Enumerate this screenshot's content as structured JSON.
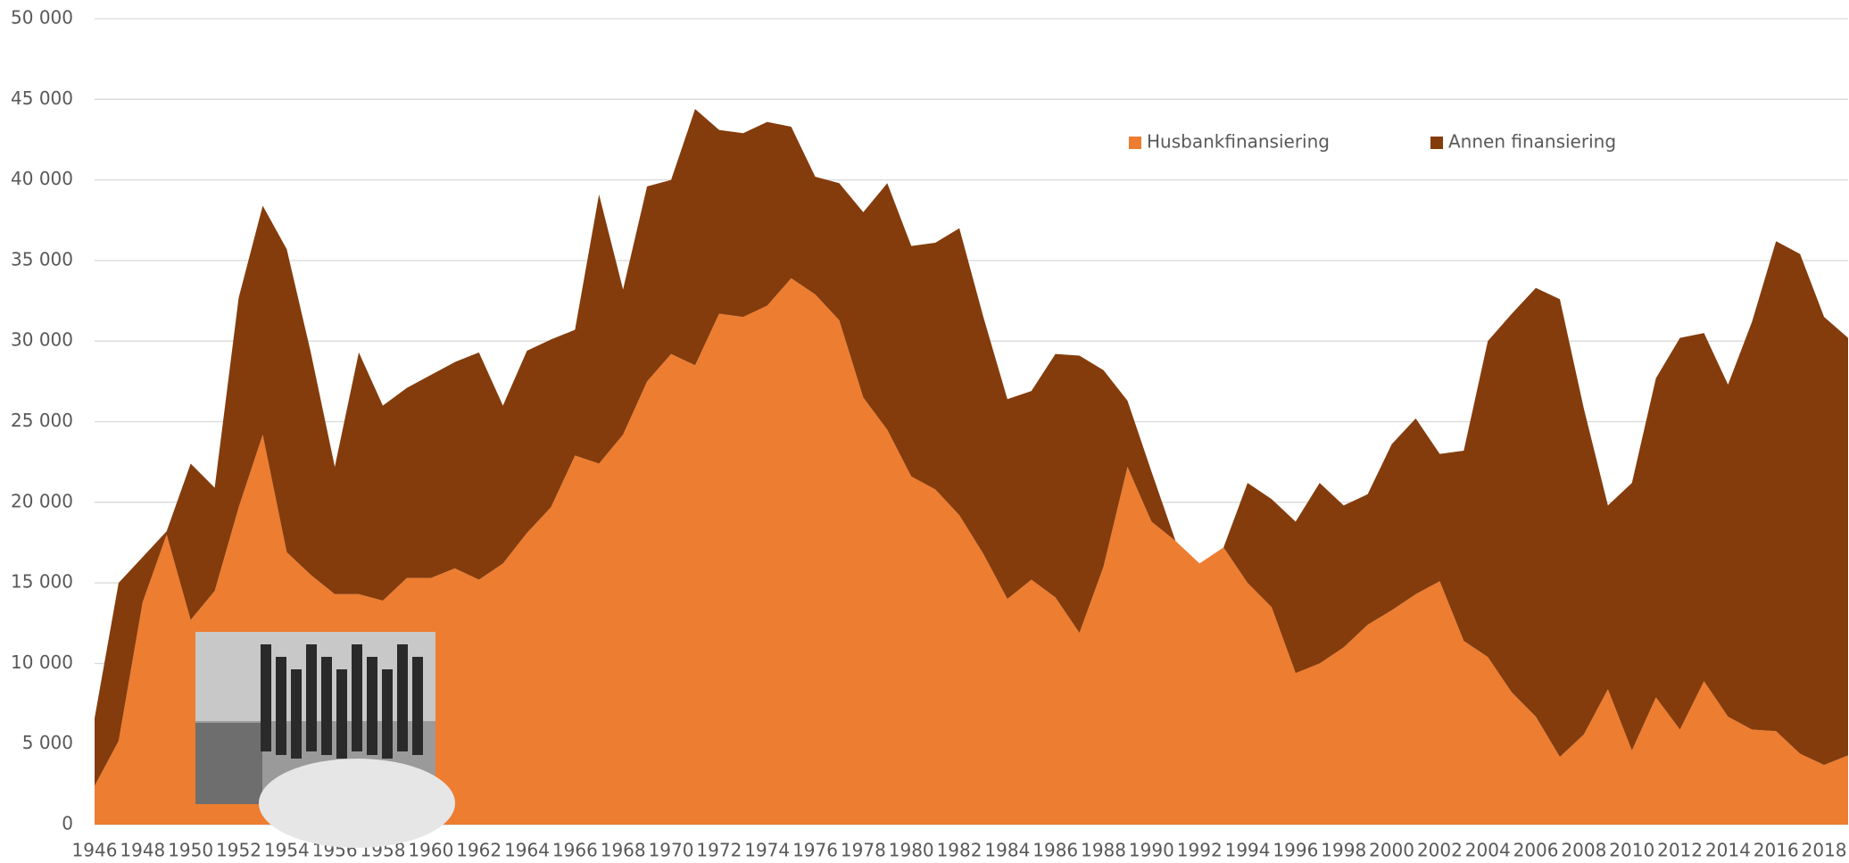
{
  "chart_data": {
    "type": "stacked-area",
    "x": [
      1946,
      1947,
      1948,
      1949,
      1950,
      1951,
      1952,
      1953,
      1954,
      1955,
      1956,
      1957,
      1958,
      1959,
      1960,
      1961,
      1962,
      1963,
      1964,
      1965,
      1966,
      1967,
      1968,
      1969,
      1970,
      1971,
      1972,
      1973,
      1974,
      1975,
      1976,
      1977,
      1978,
      1979,
      1980,
      1981,
      1982,
      1983,
      1984,
      1985,
      1986,
      1987,
      1988,
      1989,
      1990,
      1991,
      1992,
      1993,
      1994,
      1995,
      1996,
      1997,
      1998,
      1999,
      2000,
      2001,
      2002,
      2003,
      2004,
      2005,
      2006,
      2007,
      2008,
      2009,
      2010,
      2011,
      2012,
      2013,
      2014,
      2015,
      2016,
      2017,
      2018,
      2019
    ],
    "series": [
      {
        "name": "Husbankfinansiering",
        "color": "#ed7d31",
        "values": [
          2400,
          5200,
          13800,
          18000,
          12700,
          14500,
          19700,
          24200,
          16900,
          15500,
          14300,
          14300,
          13900,
          15300,
          15300,
          15900,
          15200,
          16200,
          18100,
          19700,
          22900,
          22400,
          24200,
          27500,
          29200,
          28500,
          31700,
          31500,
          32200,
          33900,
          32900,
          31300,
          26500,
          24500,
          21600,
          20800,
          19200,
          16800,
          14000,
          15200,
          14100,
          11900,
          16000,
          22200,
          18800,
          17600,
          16200,
          17200,
          15000,
          13500,
          9400,
          10000,
          11000,
          12400,
          13300,
          14300,
          15100,
          11400,
          10400,
          8200,
          6700,
          4200,
          5600,
          8400,
          4600,
          7900,
          5900,
          8900,
          6700,
          5900,
          5800,
          4400,
          3700,
          4300
        ]
      },
      {
        "name": "Annen finansiering",
        "color": "#843c0c",
        "values": [
          4200,
          9800,
          2800,
          200,
          9700,
          6400,
          13000,
          14200,
          18800,
          13800,
          7900,
          15000,
          12100,
          11800,
          12600,
          12800,
          14100,
          9800,
          11300,
          10400,
          7800,
          16700,
          9000,
          12100,
          10800,
          15900,
          11400,
          11400,
          11400,
          9400,
          7300,
          8500,
          11500,
          15300,
          14300,
          15300,
          17800,
          14700,
          12400,
          11700,
          15100,
          17200,
          12200,
          4100,
          3100,
          0,
          0,
          0,
          6200,
          6700,
          9400,
          11200,
          8800,
          8100,
          10300,
          10900,
          7900,
          11800,
          19600,
          23500,
          26600,
          28400,
          20200,
          11400,
          16600,
          19800,
          24300,
          21600,
          20600,
          25300,
          30400,
          31000,
          27800,
          25900
        ]
      }
    ],
    "xlim": [
      1946,
      2019
    ],
    "xticks": [
      1946,
      1948,
      1950,
      1952,
      1954,
      1956,
      1958,
      1960,
      1962,
      1964,
      1966,
      1968,
      1970,
      1972,
      1974,
      1976,
      1978,
      1980,
      1982,
      1984,
      1986,
      1988,
      1990,
      1992,
      1994,
      1996,
      1998,
      2000,
      2002,
      2004,
      2006,
      2008,
      2010,
      2012,
      2014,
      2016,
      2018
    ],
    "ylim": [
      0,
      50000
    ],
    "yticks": [
      0,
      {
        "value": 5000,
        "label": "5 000"
      },
      {
        "value": 10000,
        "label": "10 000"
      },
      {
        "value": 15000,
        "label": "15 000"
      },
      {
        "value": 20000,
        "label": "20 000"
      },
      {
        "value": 25000,
        "label": "25 000"
      },
      {
        "value": 30000,
        "label": "30 000"
      },
      {
        "value": 35000,
        "label": "35 000"
      },
      {
        "value": 40000,
        "label": "40 000"
      },
      {
        "value": 45000,
        "label": "45 000"
      },
      {
        "value": 50000,
        "label": "50 000"
      }
    ],
    "grid": true,
    "legend": "top"
  }
}
